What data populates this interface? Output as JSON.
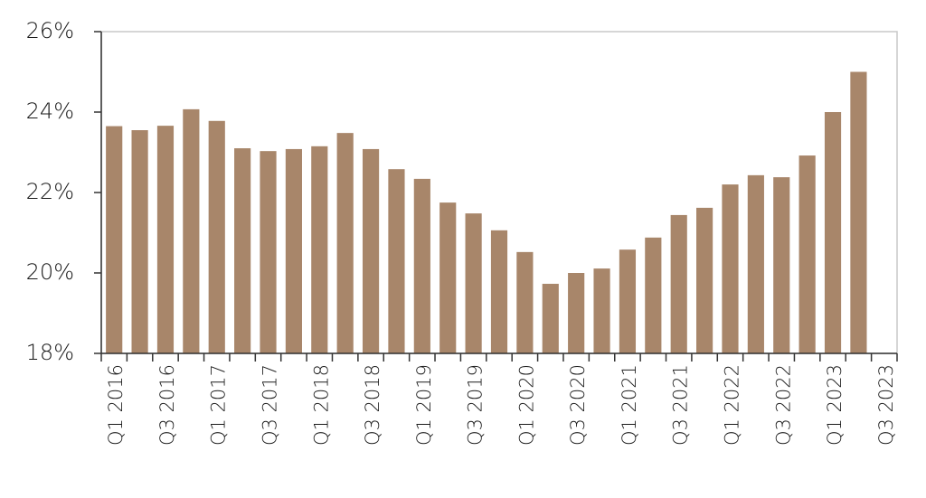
{
  "chart_data": {
    "type": "bar",
    "categories": [
      "Q1 2016",
      null,
      "Q3 2016",
      null,
      "Q1 2017",
      null,
      "Q3 2017",
      null,
      "Q1 2018",
      null,
      "Q3 2018",
      null,
      "Q1 2019",
      null,
      "Q3 2019",
      null,
      "Q1 2020",
      null,
      "Q3 2020",
      null,
      "Q1 2021",
      null,
      "Q3 2021",
      null,
      "Q1 2022",
      null,
      "Q3 2022",
      null,
      "Q1 2023",
      null,
      "Q3 2023"
    ],
    "values": [
      23.65,
      23.55,
      23.66,
      24.07,
      23.78,
      23.1,
      23.03,
      23.08,
      23.15,
      23.48,
      23.08,
      22.58,
      22.34,
      21.75,
      21.48,
      21.06,
      20.52,
      19.73,
      20.0,
      20.11,
      20.58,
      20.88,
      21.44,
      21.62,
      22.2,
      22.43,
      22.38,
      22.92,
      24.0,
      25.0,
      null
    ],
    "color": "#a8866a",
    "ylim": [
      18,
      26
    ],
    "yticks": [
      {
        "value": 18,
        "label": "18%"
      },
      {
        "value": 20,
        "label": "20%"
      },
      {
        "value": 22,
        "label": "22%"
      },
      {
        "value": 24,
        "label": "24%"
      },
      {
        "value": 26,
        "label": "26%"
      }
    ],
    "grid": false
  }
}
